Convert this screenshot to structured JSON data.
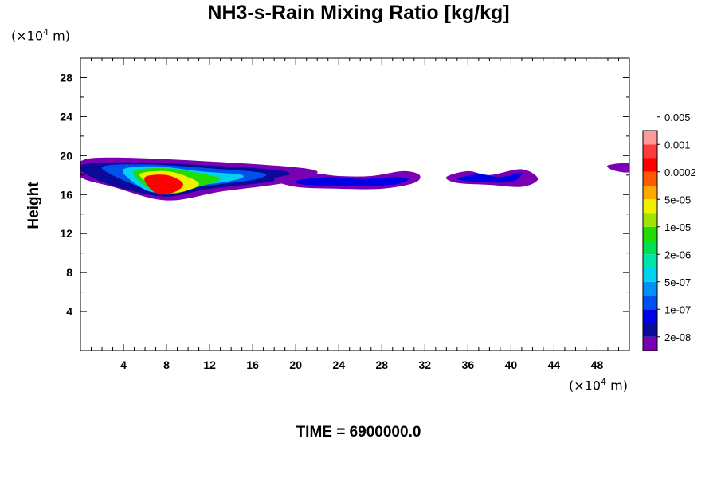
{
  "chart_data": {
    "type": "filled-contour",
    "title": "NH3-s-Rain Mixing Ratio [kg/kg]",
    "ylabel": "Height",
    "y_unit_prefix": "(×10",
    "y_unit_exp": "4",
    "y_unit_suffix": " m)",
    "x_unit_prefix": "(×10",
    "x_unit_exp": "4",
    "x_unit_suffix": " m)",
    "footer": "TIME = 6900000.0",
    "xlim": [
      0,
      51
    ],
    "ylim": [
      0,
      30
    ],
    "xticks": [
      "4",
      "8",
      "12",
      "16",
      "20",
      "24",
      "28",
      "32",
      "36",
      "40",
      "44",
      "48"
    ],
    "yticks": [
      "4",
      "8",
      "12",
      "16",
      "20",
      "24",
      "28"
    ],
    "colorbar": {
      "colors": [
        "#7a00b4",
        "#0a0a9a",
        "#0000e6",
        "#0050ee",
        "#0090f8",
        "#00d2f0",
        "#00e6a8",
        "#00e050",
        "#20dc00",
        "#9ee600",
        "#f0f000",
        "#ffa800",
        "#ff5a00",
        "#ff0000",
        "#ff3c3c",
        "#ff9a9a"
      ],
      "labels": [
        "2e-08",
        "1e-07",
        "5e-07",
        "2e-06",
        "1e-05",
        "5e-05",
        "0.0002",
        "0.001",
        "0.005"
      ]
    },
    "regions": [
      {
        "x": [
          0,
          3,
          12,
          20,
          22,
          19,
          13,
          8,
          3,
          0
        ],
        "y": [
          19.4,
          19.8,
          19.4,
          18.8,
          18.2,
          17.2,
          16.3,
          15.4,
          16.8,
          17.8
        ],
        "level": 0
      },
      {
        "x": [
          0,
          4,
          12,
          19,
          18,
          12,
          8,
          4,
          1
        ],
        "y": [
          19.0,
          19.3,
          19.0,
          18.4,
          17.4,
          16.6,
          15.8,
          16.6,
          17.8
        ],
        "level": 1
      },
      {
        "x": [
          2,
          6,
          12,
          17,
          16,
          11,
          8,
          5
        ],
        "y": [
          18.8,
          19.1,
          18.7,
          18.2,
          17.5,
          16.8,
          16.1,
          17.0
        ],
        "level": 3
      },
      {
        "x": [
          4,
          7,
          11,
          15,
          14,
          10,
          7,
          5
        ],
        "y": [
          18.6,
          18.9,
          18.4,
          18.0,
          17.4,
          16.8,
          16.2,
          17.2
        ],
        "level": 5
      },
      {
        "x": [
          5,
          8,
          11,
          13,
          11,
          8,
          6
        ],
        "y": [
          18.4,
          18.7,
          18.2,
          17.6,
          16.8,
          16.0,
          16.9
        ],
        "level": 8
      },
      {
        "x": [
          5.5,
          8,
          10,
          11,
          9,
          7
        ],
        "y": [
          18.1,
          18.4,
          17.8,
          17.0,
          16.2,
          16.8
        ],
        "level": 10
      },
      {
        "x": [
          6,
          8,
          9.5,
          9,
          7.5,
          6.5
        ],
        "y": [
          17.8,
          18.0,
          17.2,
          16.4,
          16.0,
          16.6
        ],
        "level": 13
      },
      {
        "x": [
          18,
          21,
          24,
          27,
          30,
          31.5,
          31,
          28,
          24,
          20
        ],
        "y": [
          17.6,
          18.2,
          17.9,
          17.9,
          18.4,
          18.0,
          17.2,
          16.6,
          16.6,
          16.8
        ],
        "level": 0
      },
      {
        "x": [
          20,
          23,
          26,
          29,
          30.5,
          29,
          25,
          21
        ],
        "y": [
          17.4,
          17.8,
          17.6,
          17.8,
          17.6,
          17.0,
          16.9,
          17.0
        ],
        "level": 2
      },
      {
        "x": [
          34,
          36,
          38,
          41,
          42.5,
          41,
          38,
          35
        ],
        "y": [
          17.8,
          18.4,
          18.0,
          18.6,
          17.6,
          16.8,
          17.0,
          17.2
        ],
        "level": 0
      },
      {
        "x": [
          35,
          37,
          39,
          41,
          40,
          37
        ],
        "y": [
          17.6,
          18.1,
          17.8,
          18.2,
          17.3,
          17.3
        ],
        "level": 2
      },
      {
        "x": [
          49,
          51,
          51,
          49.5
        ],
        "y": [
          19.0,
          19.2,
          18.3,
          18.5
        ],
        "level": 0
      }
    ]
  }
}
